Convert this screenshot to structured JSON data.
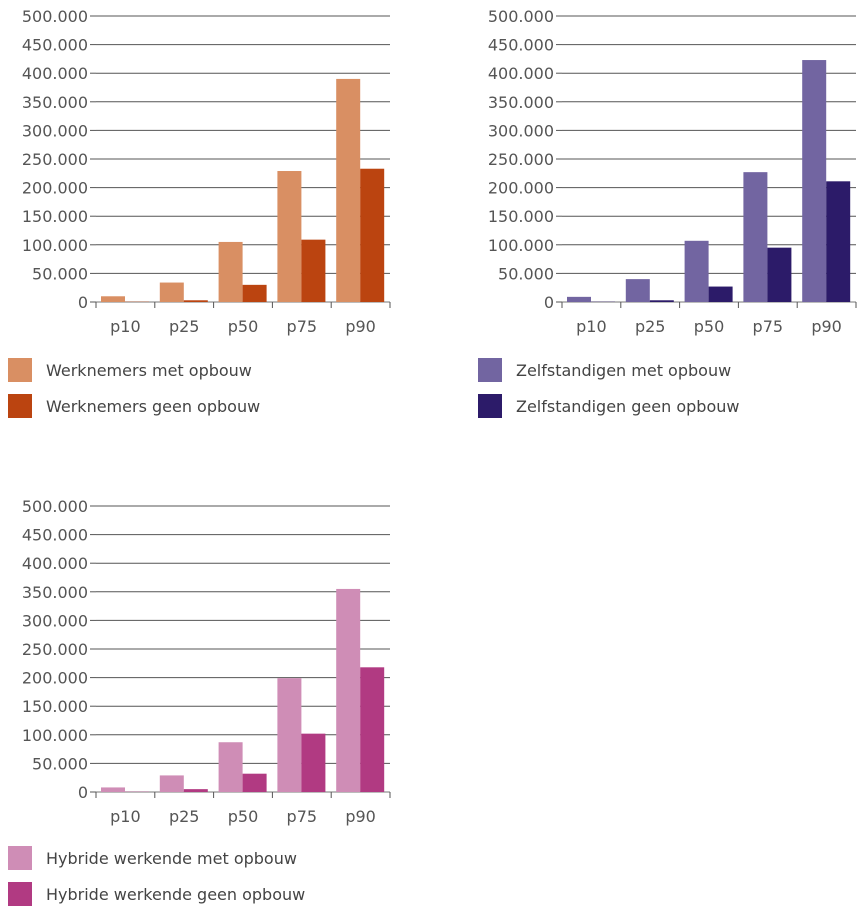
{
  "chart_data": [
    {
      "type": "bar",
      "categories": [
        "p10",
        "p25",
        "p50",
        "p75",
        "p90"
      ],
      "ylim": [
        0,
        500000
      ],
      "yticks": [
        "0",
        "50.000",
        "100.000",
        "150.000",
        "200.000",
        "250.000",
        "300.000",
        "350.000",
        "400.000",
        "450.000",
        "500.000"
      ],
      "grid": true,
      "legend_position": "bottom",
      "series": [
        {
          "name": "Werknemers met opbouw",
          "color": "#d98f63",
          "values": [
            10000,
            34000,
            105000,
            229000,
            390000
          ]
        },
        {
          "name": "Werknemers geen opbouw",
          "color": "#bb4410",
          "values": [
            500,
            3000,
            30000,
            109000,
            233000
          ]
        }
      ]
    },
    {
      "type": "bar",
      "categories": [
        "p10",
        "p25",
        "p50",
        "p75",
        "p90"
      ],
      "ylim": [
        0,
        500000
      ],
      "yticks": [
        "0",
        "50.000",
        "100.000",
        "150.000",
        "200.000",
        "250.000",
        "300.000",
        "350.000",
        "400.000",
        "450.000",
        "500.000"
      ],
      "grid": true,
      "legend_position": "bottom",
      "series": [
        {
          "name": "Zelfstandigen met opbouw",
          "color": "#7265a1",
          "values": [
            9000,
            40000,
            107000,
            227000,
            423000
          ]
        },
        {
          "name": "Zelfstandigen geen opbouw",
          "color": "#2c1b69",
          "values": [
            500,
            3000,
            27000,
            95000,
            211000
          ]
        }
      ]
    },
    {
      "type": "bar",
      "categories": [
        "p10",
        "p25",
        "p50",
        "p75",
        "p90"
      ],
      "ylim": [
        0,
        500000
      ],
      "yticks": [
        "0",
        "50.000",
        "100.000",
        "150.000",
        "200.000",
        "250.000",
        "300.000",
        "350.000",
        "400.000",
        "450.000",
        "500.000"
      ],
      "grid": true,
      "legend_position": "bottom",
      "series": [
        {
          "name": "Hybride werkende met opbouw",
          "color": "#cf8db6",
          "values": [
            8000,
            29000,
            87000,
            199000,
            355000
          ]
        },
        {
          "name": "Hybride werkende geen opbouw",
          "color": "#b13a82",
          "values": [
            500,
            5000,
            32000,
            102000,
            218000
          ]
        }
      ]
    }
  ]
}
